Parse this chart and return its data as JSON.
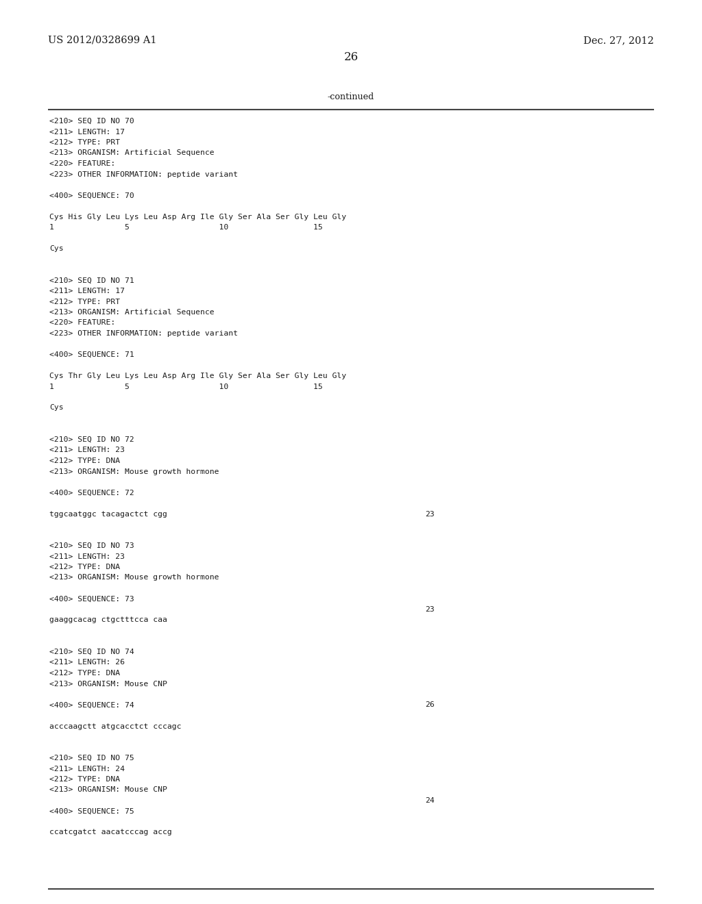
{
  "bg_color": "#ffffff",
  "header_left": "US 2012/0328699 A1",
  "header_right": "Dec. 27, 2012",
  "page_number": "26",
  "continued_text": "-continued",
  "monospace_font_size": 8.2,
  "header_font_size": 10.5,
  "page_num_font_size": 12,
  "content_lines": [
    "<210> SEQ ID NO 70",
    "<211> LENGTH: 17",
    "<212> TYPE: PRT",
    "<213> ORGANISM: Artificial Sequence",
    "<220> FEATURE:",
    "<223> OTHER INFORMATION: peptide variant",
    "",
    "<400> SEQUENCE: 70",
    "",
    "Cys His Gly Leu Lys Leu Asp Arg Ile Gly Ser Ala Ser Gly Leu Gly",
    "1               5                   10                  15",
    "",
    "Cys",
    "",
    "",
    "<210> SEQ ID NO 71",
    "<211> LENGTH: 17",
    "<212> TYPE: PRT",
    "<213> ORGANISM: Artificial Sequence",
    "<220> FEATURE:",
    "<223> OTHER INFORMATION: peptide variant",
    "",
    "<400> SEQUENCE: 71",
    "",
    "Cys Thr Gly Leu Lys Leu Asp Arg Ile Gly Ser Ala Ser Gly Leu Gly",
    "1               5                   10                  15",
    "",
    "Cys",
    "",
    "",
    "<210> SEQ ID NO 72",
    "<211> LENGTH: 23",
    "<212> TYPE: DNA",
    "<213> ORGANISM: Mouse growth hormone",
    "",
    "<400> SEQUENCE: 72",
    "",
    "tggcaatggc tacagactct cgg",
    "",
    "",
    "<210> SEQ ID NO 73",
    "<211> LENGTH: 23",
    "<212> TYPE: DNA",
    "<213> ORGANISM: Mouse growth hormone",
    "",
    "<400> SEQUENCE: 73",
    "",
    "gaaggcacag ctgctttcca caa",
    "",
    "",
    "<210> SEQ ID NO 74",
    "<211> LENGTH: 26",
    "<212> TYPE: DNA",
    "<213> ORGANISM: Mouse CNP",
    "",
    "<400> SEQUENCE: 74",
    "",
    "acccaagctt atgcacctct cccagc",
    "",
    "",
    "<210> SEQ ID NO 75",
    "<211> LENGTH: 24",
    "<212> TYPE: DNA",
    "<213> ORGANISM: Mouse CNP",
    "",
    "<400> SEQUENCE: 75",
    "",
    "ccatcgatct aacatcccag accg"
  ],
  "seq_numbers": [
    {
      "line_index": 37,
      "number": "23"
    },
    {
      "line_index": 46,
      "number": "23"
    },
    {
      "line_index": 55,
      "number": "26"
    },
    {
      "line_index": 64,
      "number": "24"
    }
  ]
}
